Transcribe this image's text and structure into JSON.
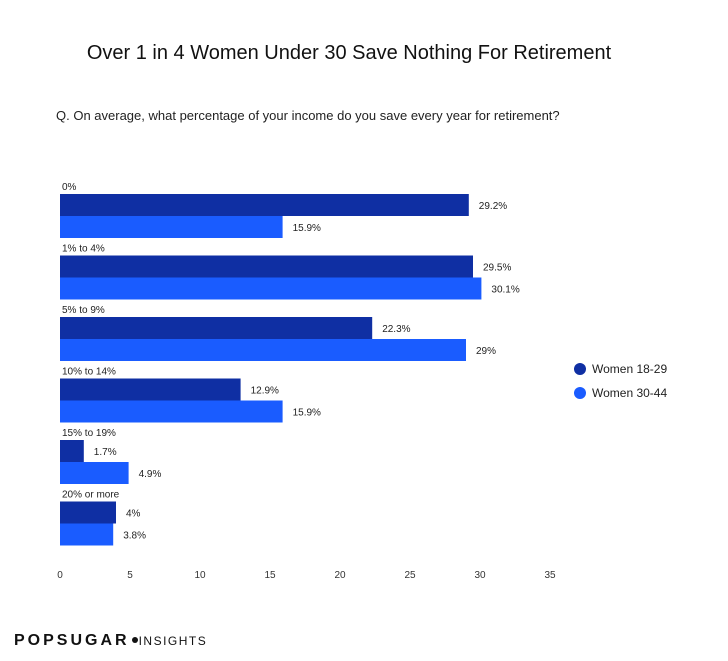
{
  "chart_data": {
    "type": "bar",
    "orientation": "horizontal",
    "title": "Over 1 in 4 Women Under 30 Save Nothing For Retirement",
    "subtitle": "Q. On average, what percentage of your income do you save every year for retirement?",
    "categories": [
      "0%",
      "1% to 4%",
      "5% to 9%",
      "10% to 14%",
      "15% to 19%",
      "20% or more"
    ],
    "series": [
      {
        "name": "Women 18-29",
        "color": "#0f2fa3",
        "values": [
          29.2,
          29.5,
          22.3,
          12.9,
          1.7,
          4
        ],
        "labels": [
          "29.2%",
          "29.5%",
          "22.3%",
          "12.9%",
          "1.7%",
          "4%"
        ]
      },
      {
        "name": "Women 30-44",
        "color": "#1a5cff",
        "values": [
          15.9,
          30.1,
          29,
          15.9,
          4.9,
          3.8
        ],
        "labels": [
          "15.9%",
          "30.1%",
          "29%",
          "15.9%",
          "4.9%",
          "3.8%"
        ]
      }
    ],
    "xlim": [
      0,
      35
    ],
    "xticks": [
      "0",
      "5",
      "10",
      "15",
      "20",
      "25",
      "30",
      "35"
    ],
    "legend_position": "right",
    "grid": false
  },
  "brand": {
    "name": "POPSUGAR",
    "suffix": "INSIGHTS"
  }
}
